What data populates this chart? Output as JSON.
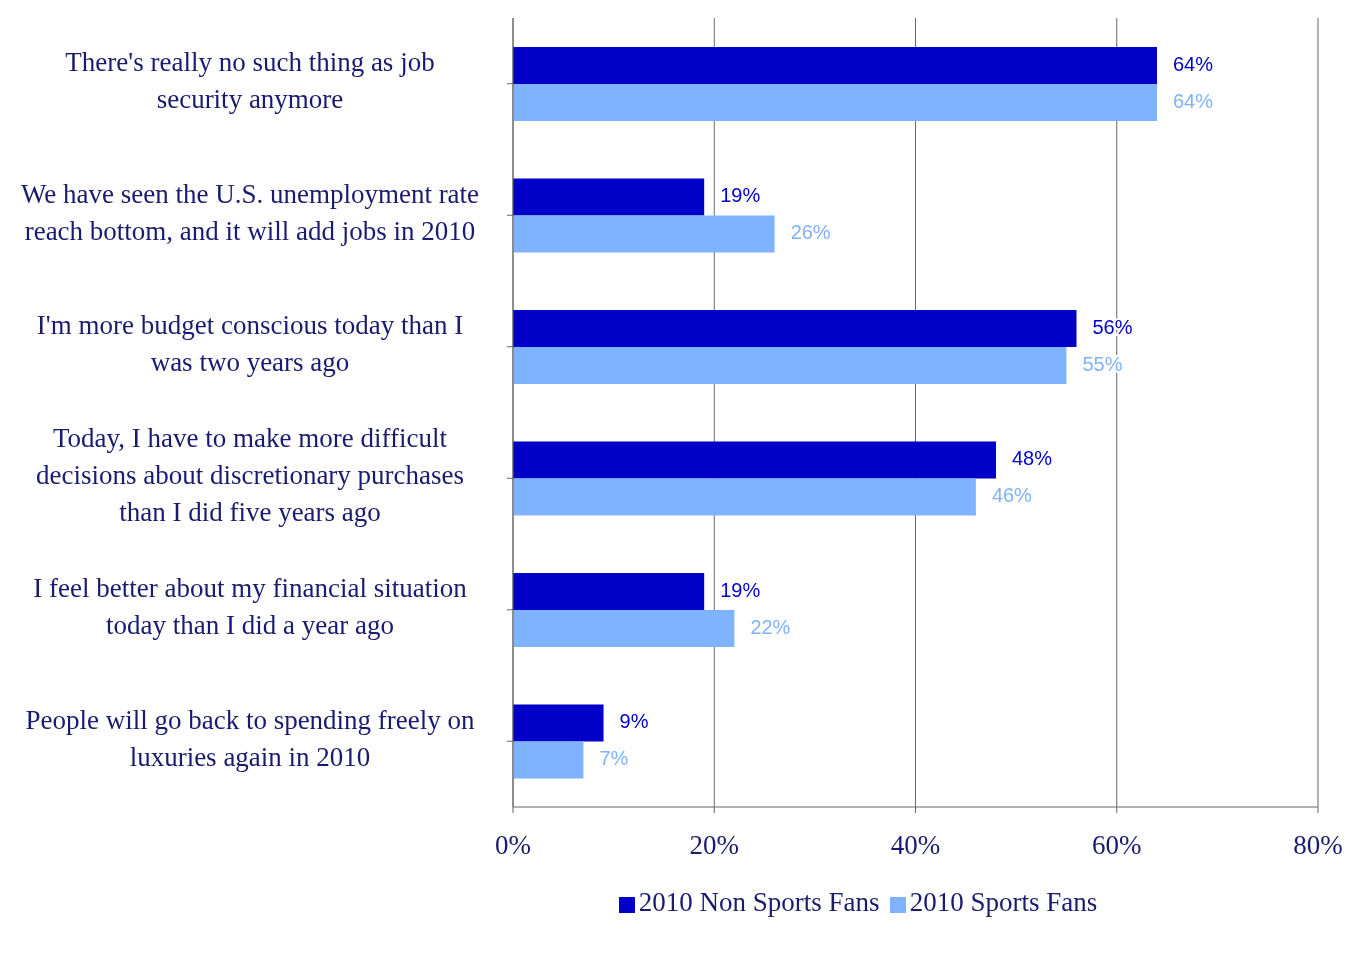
{
  "chart_data": {
    "type": "bar",
    "orientation": "horizontal",
    "categories": [
      "There's really no such thing as job security anymore",
      "We have seen the U.S. unemployment rate reach bottom, and it will add jobs in 2010",
      "I'm more budget conscious today than I was two years ago",
      "Today, I have to make more difficult decisions about discretionary purchases than I did five years ago",
      "I feel better about my financial situation today than I did a year ago",
      "People will go back to spending freely on luxuries again in 2010"
    ],
    "series": [
      {
        "name": "2010 Non Sports Fans",
        "color": "#0000c8",
        "values": [
          64,
          19,
          56,
          48,
          19,
          9
        ],
        "value_labels": [
          "64%",
          "19%",
          "56%",
          "48%",
          "19%",
          "9%"
        ]
      },
      {
        "name": "2010 Sports Fans",
        "color": "#7fb3ff",
        "values": [
          64,
          26,
          55,
          46,
          22,
          7
        ],
        "value_labels": [
          "64%",
          "26%",
          "55%",
          "46%",
          "22%",
          "7%"
        ]
      }
    ],
    "xlim": [
      0,
      80
    ],
    "xticks": [
      {
        "value": 0,
        "label": "0%"
      },
      {
        "value": 20,
        "label": "20%"
      },
      {
        "value": 40,
        "label": "40%"
      },
      {
        "value": 60,
        "label": "60%"
      },
      {
        "value": 80,
        "label": "80%"
      }
    ],
    "grid": "x",
    "legend": "bottom"
  }
}
